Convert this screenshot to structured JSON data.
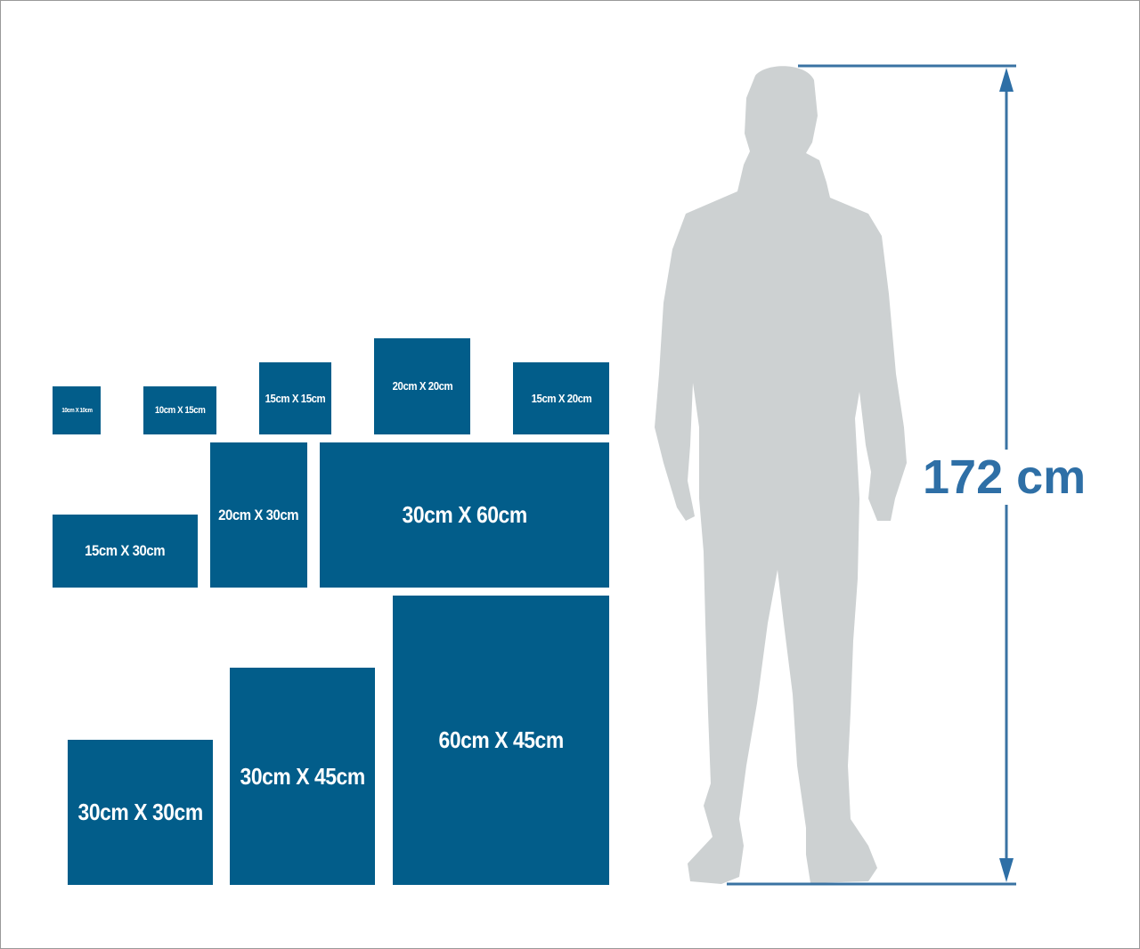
{
  "sizes": [
    {
      "label": "10cm X 10cm"
    },
    {
      "label": "10cm X 15cm"
    },
    {
      "label": "15cm X 15cm"
    },
    {
      "label": "20cm X 20cm"
    },
    {
      "label": "15cm X 20cm"
    },
    {
      "label": "15cm X 30cm"
    },
    {
      "label": "20cm X 30cm"
    },
    {
      "label": "30cm X 60cm"
    },
    {
      "label": "60cm X 45cm"
    },
    {
      "label": "30cm X 45cm"
    },
    {
      "label": "30cm X 30cm"
    }
  ],
  "person": {
    "height_label": "172 cm"
  },
  "colors": {
    "box": "#025d8a",
    "silhouette": "#cdd1d2",
    "dimension_line": "#3a73a3",
    "height_text": "#2e6fa6"
  }
}
